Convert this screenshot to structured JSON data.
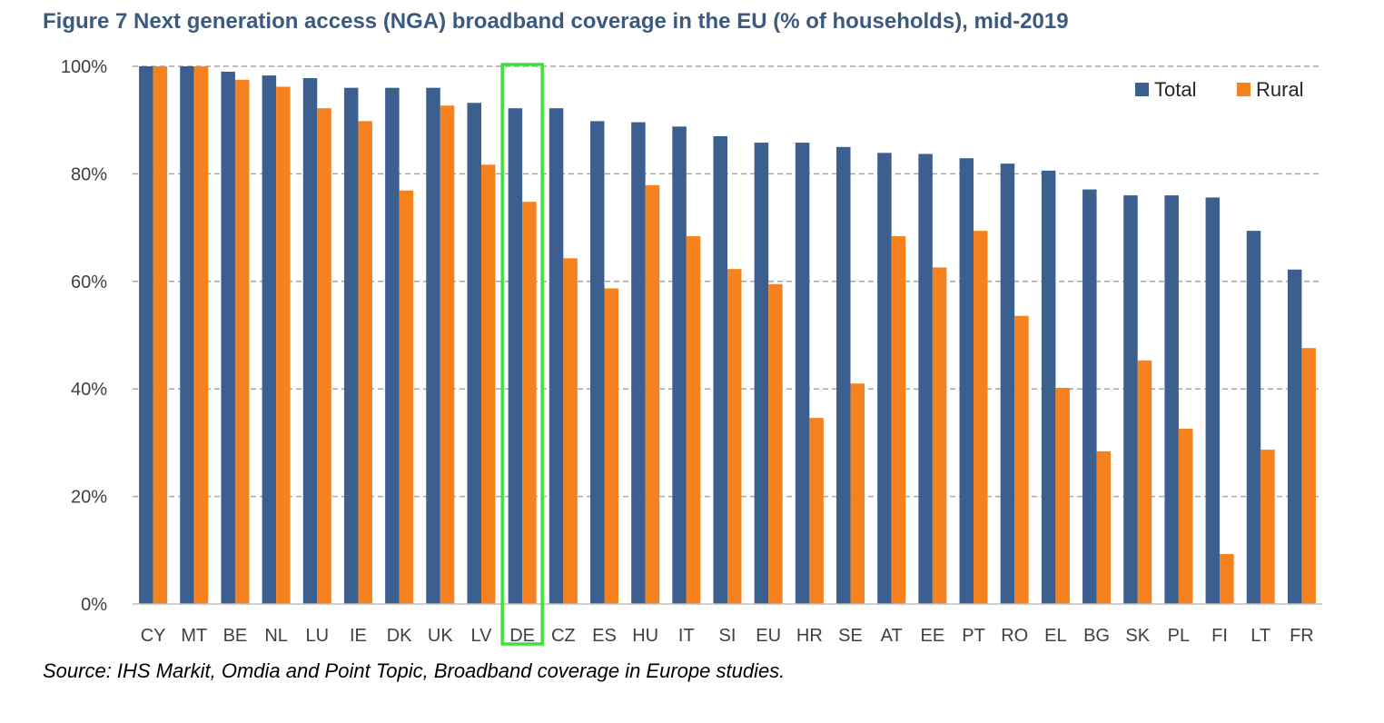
{
  "title": "Figure 7 Next generation access (NGA) broadband coverage in the EU (% of households), mid-2019",
  "source": "Source: IHS Markit, Omdia and Point Topic, Broadband coverage in Europe studies.",
  "colors": {
    "total": "#3b5f8e",
    "rural": "#f5821f",
    "highlight": "#3ee03e",
    "grid": "#a6a6a6"
  },
  "chart_data": {
    "type": "bar",
    "title": "Figure 7 Next generation access (NGA) broadband coverage in the EU (% of households), mid-2019",
    "xlabel": "",
    "ylabel": "",
    "ylim": [
      0,
      100
    ],
    "yticks": [
      "0%",
      "20%",
      "40%",
      "60%",
      "80%",
      "100%"
    ],
    "grid": true,
    "legend_position": "top-right",
    "highlighted_category": "DE",
    "categories": [
      "CY",
      "MT",
      "BE",
      "NL",
      "LU",
      "IE",
      "DK",
      "UK",
      "LV",
      "DE",
      "CZ",
      "ES",
      "HU",
      "IT",
      "SI",
      "EU",
      "HR",
      "SE",
      "AT",
      "EE",
      "PT",
      "RO",
      "EL",
      "BG",
      "SK",
      "PL",
      "FI",
      "LT",
      "FR"
    ],
    "series": [
      {
        "name": "Total",
        "values": [
          100,
          100,
          99,
          98.3,
          97.8,
          96,
          96,
          96,
          93.2,
          92.2,
          92.2,
          89.8,
          89.6,
          88.8,
          87,
          85.8,
          85.8,
          85,
          83.9,
          83.7,
          82.9,
          81.9,
          80.6,
          77.1,
          76,
          76,
          75.6,
          69.4,
          62.2
        ]
      },
      {
        "name": "Rural",
        "values": [
          100,
          100,
          97.5,
          96.2,
          92.2,
          89.8,
          76.9,
          92.7,
          81.7,
          74.8,
          64.3,
          58.7,
          77.9,
          68.4,
          62.3,
          59.5,
          34.6,
          41,
          68.4,
          62.6,
          69.4,
          53.6,
          40.2,
          28.4,
          45.3,
          32.6,
          9.3,
          28.7,
          47.6
        ]
      }
    ]
  }
}
